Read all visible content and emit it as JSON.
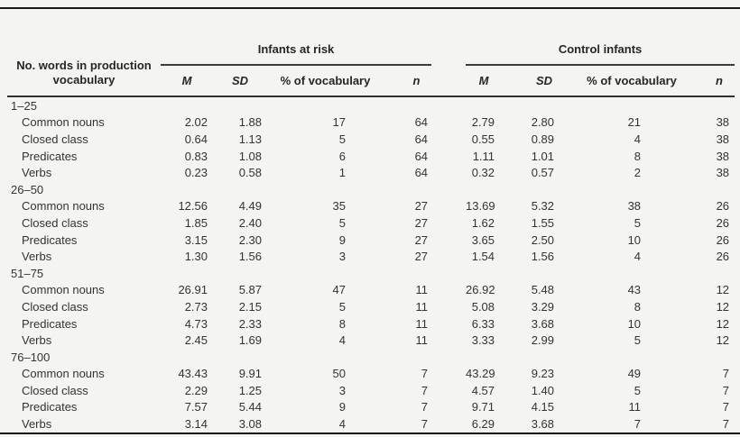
{
  "page": {
    "background_color": "#f4f4f2",
    "rule_color": "#1a1a1a",
    "text_color": "#333332"
  },
  "table": {
    "stub_header_line1": "No. words in production",
    "stub_header_line2": "vocabulary",
    "group_headers": [
      "Infants at risk",
      "Control infants"
    ],
    "sub_headers": [
      "M",
      "SD",
      "% of vocabulary",
      "n"
    ],
    "sections": [
      {
        "label": "1–25",
        "rows": [
          {
            "label": "Common nouns",
            "cells": [
              "2.02",
              "1.88",
              "17",
              "64",
              "2.79",
              "2.80",
              "21",
              "38"
            ]
          },
          {
            "label": "Closed class",
            "cells": [
              "0.64",
              "1.13",
              "5",
              "64",
              "0.55",
              "0.89",
              "4",
              "38"
            ]
          },
          {
            "label": "Predicates",
            "cells": [
              "0.83",
              "1.08",
              "6",
              "64",
              "1.11",
              "1.01",
              "8",
              "38"
            ]
          },
          {
            "label": "Verbs",
            "cells": [
              "0.23",
              "0.58",
              "1",
              "64",
              "0.32",
              "0.57",
              "2",
              "38"
            ]
          }
        ]
      },
      {
        "label": "26–50",
        "rows": [
          {
            "label": "Common nouns",
            "cells": [
              "12.56",
              "4.49",
              "35",
              "27",
              "13.69",
              "5.32",
              "38",
              "26"
            ]
          },
          {
            "label": "Closed class",
            "cells": [
              "1.85",
              "2.40",
              "5",
              "27",
              "1.62",
              "1.55",
              "5",
              "26"
            ]
          },
          {
            "label": "Predicates",
            "cells": [
              "3.15",
              "2.30",
              "9",
              "27",
              "3.65",
              "2.50",
              "10",
              "26"
            ]
          },
          {
            "label": "Verbs",
            "cells": [
              "1.30",
              "1.56",
              "3",
              "27",
              "1.54",
              "1.56",
              "4",
              "26"
            ]
          }
        ]
      },
      {
        "label": "51–75",
        "rows": [
          {
            "label": "Common nouns",
            "cells": [
              "26.91",
              "5.87",
              "47",
              "11",
              "26.92",
              "5.48",
              "43",
              "12"
            ]
          },
          {
            "label": "Closed class",
            "cells": [
              "2.73",
              "2.15",
              "5",
              "11",
              "5.08",
              "3.29",
              "8",
              "12"
            ]
          },
          {
            "label": "Predicates",
            "cells": [
              "4.73",
              "2.33",
              "8",
              "11",
              "6.33",
              "3.68",
              "10",
              "12"
            ]
          },
          {
            "label": "Verbs",
            "cells": [
              "2.45",
              "1.69",
              "4",
              "11",
              "3.33",
              "2.99",
              "5",
              "12"
            ]
          }
        ]
      },
      {
        "label": "76–100",
        "rows": [
          {
            "label": "Common nouns",
            "cells": [
              "43.43",
              "9.91",
              "50",
              "7",
              "43.29",
              "9.23",
              "49",
              "7"
            ]
          },
          {
            "label": "Closed class",
            "cells": [
              "2.29",
              "1.25",
              "3",
              "7",
              "4.57",
              "1.40",
              "5",
              "7"
            ]
          },
          {
            "label": "Predicates",
            "cells": [
              "7.57",
              "5.44",
              "9",
              "7",
              "9.71",
              "4.15",
              "11",
              "7"
            ]
          },
          {
            "label": "Verbs",
            "cells": [
              "3.14",
              "3.08",
              "4",
              "7",
              "6.29",
              "3.68",
              "7",
              "7"
            ]
          }
        ]
      }
    ]
  },
  "chart_data": {
    "type": "table",
    "row_header": "No. words in production vocabulary",
    "column_groups": [
      "Infants at risk",
      "Control infants"
    ],
    "columns": [
      "M",
      "SD",
      "% of vocabulary",
      "n",
      "M",
      "SD",
      "% of vocabulary",
      "n"
    ],
    "rows": [
      {
        "section": "1–25",
        "label": "Common nouns",
        "values": [
          2.02,
          1.88,
          17,
          64,
          2.79,
          2.8,
          21,
          38
        ]
      },
      {
        "section": "1–25",
        "label": "Closed class",
        "values": [
          0.64,
          1.13,
          5,
          64,
          0.55,
          0.89,
          4,
          38
        ]
      },
      {
        "section": "1–25",
        "label": "Predicates",
        "values": [
          0.83,
          1.08,
          6,
          64,
          1.11,
          1.01,
          8,
          38
        ]
      },
      {
        "section": "1–25",
        "label": "Verbs",
        "values": [
          0.23,
          0.58,
          1,
          64,
          0.32,
          0.57,
          2,
          38
        ]
      },
      {
        "section": "26–50",
        "label": "Common nouns",
        "values": [
          12.56,
          4.49,
          35,
          27,
          13.69,
          5.32,
          38,
          26
        ]
      },
      {
        "section": "26–50",
        "label": "Closed class",
        "values": [
          1.85,
          2.4,
          5,
          27,
          1.62,
          1.55,
          5,
          26
        ]
      },
      {
        "section": "26–50",
        "label": "Predicates",
        "values": [
          3.15,
          2.3,
          9,
          27,
          3.65,
          2.5,
          10,
          26
        ]
      },
      {
        "section": "26–50",
        "label": "Verbs",
        "values": [
          1.3,
          1.56,
          3,
          27,
          1.54,
          1.56,
          4,
          26
        ]
      },
      {
        "section": "51–75",
        "label": "Common nouns",
        "values": [
          26.91,
          5.87,
          47,
          11,
          26.92,
          5.48,
          43,
          12
        ]
      },
      {
        "section": "51–75",
        "label": "Closed class",
        "values": [
          2.73,
          2.15,
          5,
          11,
          5.08,
          3.29,
          8,
          12
        ]
      },
      {
        "section": "51–75",
        "label": "Predicates",
        "values": [
          4.73,
          2.33,
          8,
          11,
          6.33,
          3.68,
          10,
          12
        ]
      },
      {
        "section": "51–75",
        "label": "Verbs",
        "values": [
          2.45,
          1.69,
          4,
          11,
          3.33,
          2.99,
          5,
          12
        ]
      },
      {
        "section": "76–100",
        "label": "Common nouns",
        "values": [
          43.43,
          9.91,
          50,
          7,
          43.29,
          9.23,
          49,
          7
        ]
      },
      {
        "section": "76–100",
        "label": "Closed class",
        "values": [
          2.29,
          1.25,
          3,
          7,
          4.57,
          1.4,
          5,
          7
        ]
      },
      {
        "section": "76–100",
        "label": "Predicates",
        "values": [
          7.57,
          5.44,
          9,
          7,
          9.71,
          4.15,
          11,
          7
        ]
      },
      {
        "section": "76–100",
        "label": "Verbs",
        "values": [
          3.14,
          3.08,
          4,
          7,
          6.29,
          3.68,
          7,
          7
        ]
      }
    ]
  }
}
